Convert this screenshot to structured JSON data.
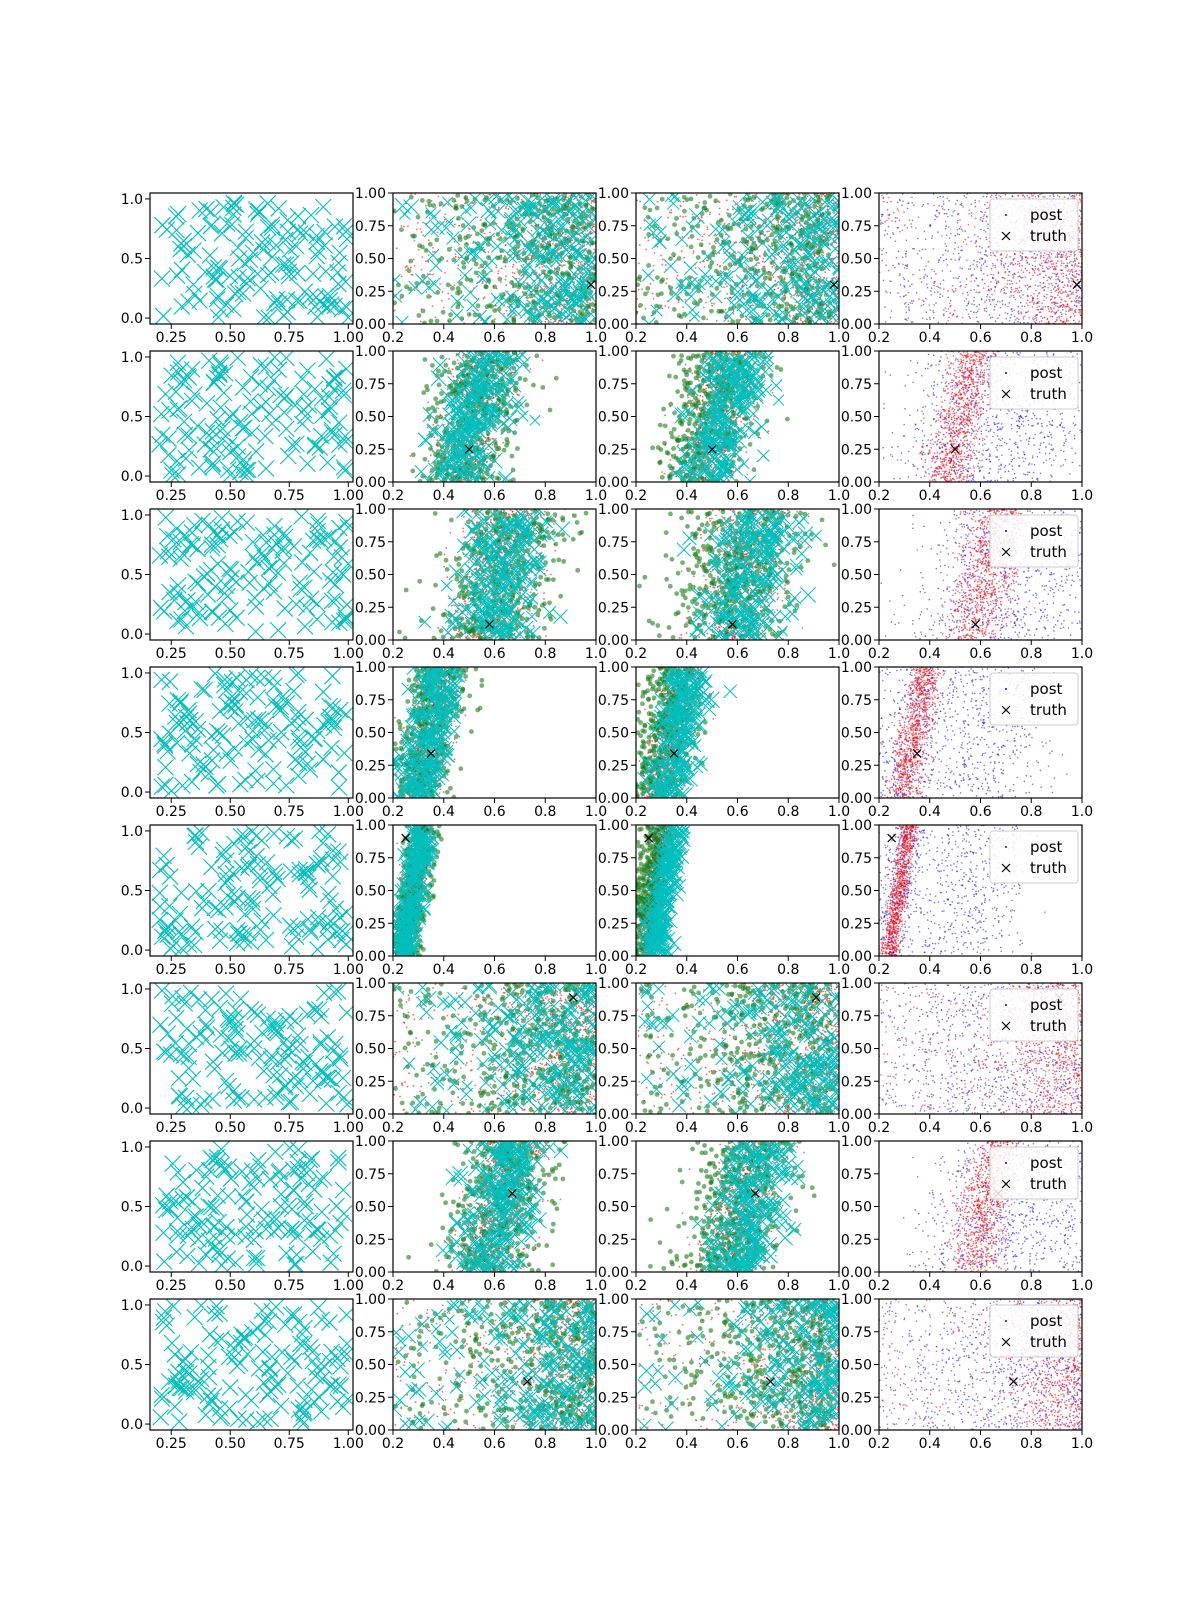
{
  "figure": {
    "rows": 8,
    "cols": 4,
    "colors": {
      "prior_x": "#00bfbf",
      "proposal_green": "#1a7f1a",
      "weighted_red": "#ff0000",
      "post_blue": "#0000ff",
      "truth": "#000000"
    },
    "legend": {
      "post": "post",
      "truth": "truth"
    }
  },
  "chart_data": {
    "type": "scatter",
    "panel_axes": {
      "col0": {
        "xlim": [
          0.16,
          1.02
        ],
        "ylim": [
          -0.05,
          1.05
        ],
        "xticks": [
          "0.25",
          "0.50",
          "0.75",
          "1.00"
        ],
        "xtick_vals": [
          0.25,
          0.5,
          0.75,
          1.0
        ],
        "yticks": [
          "0.0",
          "0.5",
          "1.0"
        ],
        "ytick_vals": [
          0.0,
          0.5,
          1.0
        ]
      },
      "col123": {
        "xlim": [
          0.2,
          1.0
        ],
        "ylim": [
          0.0,
          1.0
        ],
        "xticks": [
          "0.2",
          "0.4",
          "0.6",
          "0.8",
          "1.0"
        ],
        "xtick_vals": [
          0.2,
          0.4,
          0.6,
          0.8,
          1.0
        ],
        "yticks": [
          "0.00",
          "0.25",
          "0.50",
          "0.75",
          "1.00"
        ],
        "ytick_vals": [
          0.0,
          0.25,
          0.5,
          0.75,
          1.0
        ]
      }
    },
    "series": [
      {
        "name": "post"
      },
      {
        "name": "truth"
      }
    ],
    "rows": [
      {
        "truth": [
          0.98,
          0.3
        ],
        "regime": "wide",
        "center": 0.88,
        "width": 0.22,
        "slope": 0.0
      },
      {
        "truth": [
          0.5,
          0.25
        ],
        "regime": "band",
        "center": 0.52,
        "width": 0.14,
        "slope": 0.12
      },
      {
        "truth": [
          0.58,
          0.12
        ],
        "regime": "band",
        "center": 0.62,
        "width": 0.18,
        "slope": 0.1
      },
      {
        "truth": [
          0.35,
          0.34
        ],
        "regime": "band",
        "center": 0.34,
        "width": 0.09,
        "slope": 0.1
      },
      {
        "truth": [
          0.25,
          0.9
        ],
        "regime": "band",
        "center": 0.28,
        "width": 0.05,
        "slope": 0.08
      },
      {
        "truth": [
          0.91,
          0.89
        ],
        "regime": "wide",
        "center": 0.85,
        "width": 0.22,
        "slope": 0.0
      },
      {
        "truth": [
          0.67,
          0.6
        ],
        "regime": "band",
        "center": 0.62,
        "width": 0.15,
        "slope": 0.12
      },
      {
        "truth": [
          0.73,
          0.37
        ],
        "regime": "wide",
        "center": 0.82,
        "width": 0.18,
        "slope": 0.05
      }
    ]
  }
}
